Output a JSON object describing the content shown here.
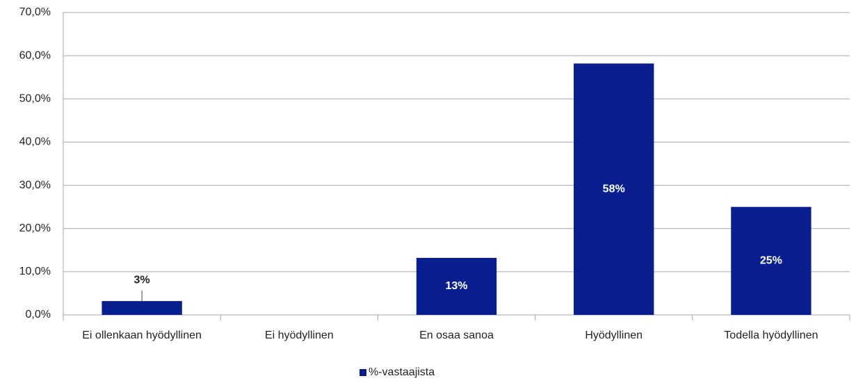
{
  "chart_data": {
    "type": "bar",
    "categories": [
      "Ei ollenkaan hyödyllinen",
      "Ei hyödyllinen",
      "En osaa sanoa",
      "Hyödyllinen",
      "Todella hyödyllinen"
    ],
    "series": [
      {
        "name": "%-vastaajista",
        "color": "#0a1f8f",
        "values": [
          3.2,
          0,
          13.2,
          58.2,
          25.0
        ],
        "value_labels": [
          "3%",
          null,
          "13%",
          "58%",
          "25%"
        ]
      }
    ],
    "ylim": [
      0,
      70
    ],
    "yticks": [
      {
        "value": 0,
        "label": "0,0%"
      },
      {
        "value": 10,
        "label": "10,0%"
      },
      {
        "value": 20,
        "label": "20,0%"
      },
      {
        "value": 30,
        "label": "30,0%"
      },
      {
        "value": 40,
        "label": "40,0%"
      },
      {
        "value": 50,
        "label": "50,0%"
      },
      {
        "value": 60,
        "label": "60,0%"
      },
      {
        "value": 70,
        "label": "70,0%"
      }
    ],
    "grid": true,
    "legend": "bottom"
  }
}
